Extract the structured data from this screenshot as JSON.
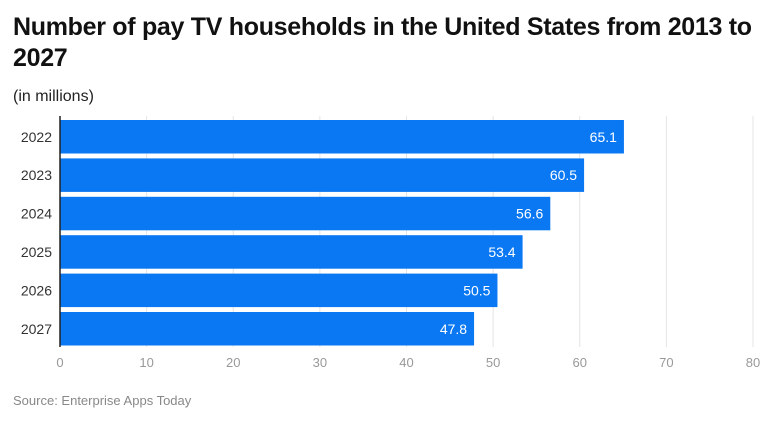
{
  "chart_data": {
    "type": "bar",
    "orientation": "horizontal",
    "title": "Number of pay TV households in the United States from 2013 to 2027",
    "subtitle": "(in millions)",
    "categories": [
      "2022",
      "2023",
      "2024",
      "2025",
      "2026",
      "2027"
    ],
    "values": [
      65.1,
      60.5,
      56.6,
      53.4,
      50.5,
      47.8
    ],
    "xlim": [
      0,
      80
    ],
    "xticks": [
      0,
      10,
      20,
      30,
      40,
      50,
      60,
      70,
      80
    ],
    "grid": true,
    "bar_color": "#0a77f3",
    "source": "Source: Enterprise Apps Today"
  }
}
